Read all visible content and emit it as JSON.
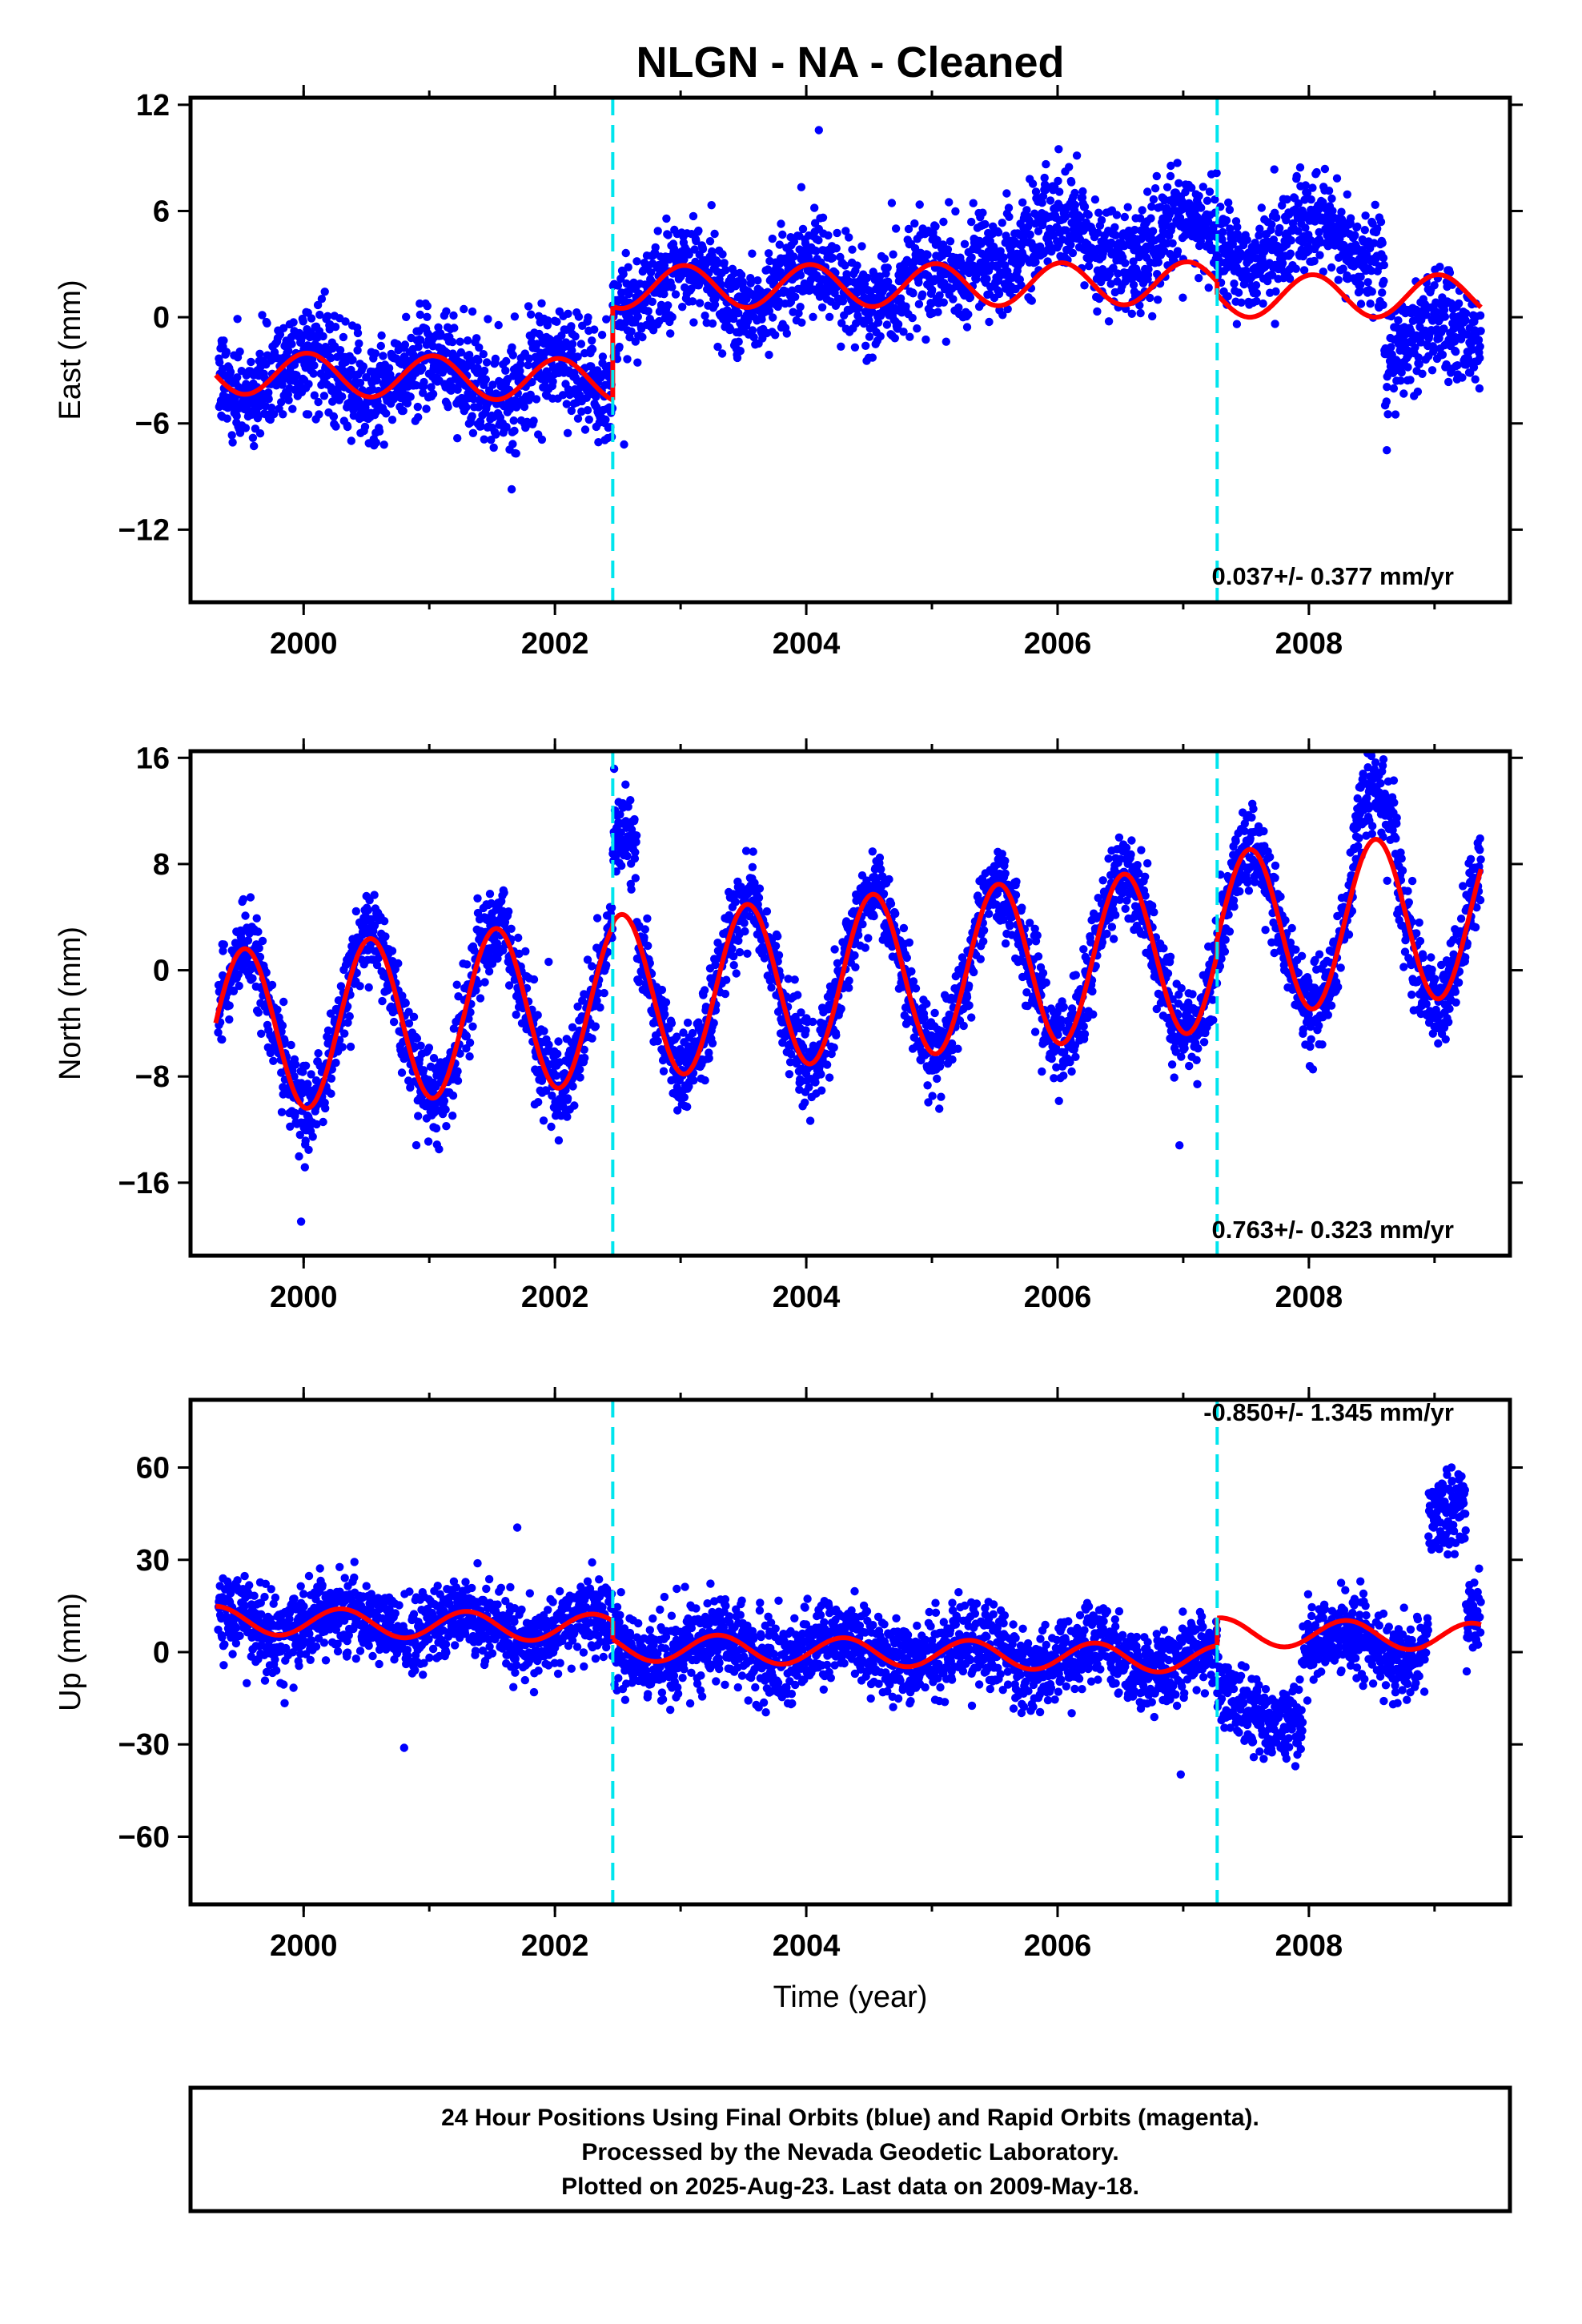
{
  "chart_data": {
    "type": "scatter",
    "title": "NLGN  - NA - Cleaned",
    "xlabel": "Time (year)",
    "xlim": [
      1999.1,
      2009.6
    ],
    "xticks": [
      2000,
      2002,
      2004,
      2006,
      2008
    ],
    "xtick_labels": [
      "2000",
      "2002",
      "2004",
      "2006",
      "2008"
    ],
    "series_colors": {
      "final_orbits": "#0000ff",
      "model": "#ff0000",
      "equipment_change": "#00e5ee"
    },
    "vertical_markers": [
      2002.46,
      2007.27
    ],
    "panels": [
      {
        "id": "east",
        "ylabel": "East (mm)",
        "ylim": [
          -16.1,
          12.4
        ],
        "yticks": [
          -12,
          -6,
          0,
          6,
          12
        ],
        "ytick_labels": [
          "-12",
          "-6",
          "0",
          "6",
          "12"
        ],
        "rate_label": "0.037+/- 0.377 mm/yr",
        "segments": [
          {
            "t0": 1999.3,
            "t1": 2002.46,
            "offset": -3.9,
            "trend": -0.15,
            "amp": 1.2,
            "phase": 0.78
          },
          {
            "t0": 2002.46,
            "t1": 2007.27,
            "offset": 1.8,
            "trend": 0.05,
            "amp": 1.2,
            "phase": 0.78
          },
          {
            "t0": 2007.27,
            "t1": 2009.37,
            "offset": 1.2,
            "trend": 0.0,
            "amp": 1.2,
            "phase": 0.78
          }
        ],
        "residual_offsets": [
          {
            "t0": 2005.3,
            "t1": 2007.27,
            "add": 2.4
          },
          {
            "t0": 2007.27,
            "t1": 2008.6,
            "add": 3.0
          },
          {
            "t0": 2008.6,
            "t1": 2009.37,
            "add": -2.5
          }
        ],
        "scatter_sigma": 1.4,
        "spike_times": [
          2002.55,
          2004.1,
          2008.62
        ]
      },
      {
        "id": "north",
        "ylabel": "North (mm)",
        "ylim": [
          -21.5,
          16.5
        ],
        "yticks": [
          -16,
          -8,
          0,
          8,
          16
        ],
        "ytick_labels": [
          "-16",
          "-8",
          "0",
          "8",
          "16"
        ],
        "rate_label": "0.763+/- 0.323 mm/yr",
        "segments": [
          {
            "t0": 1999.3,
            "t1": 2002.46,
            "offset": -0.8,
            "trend": 0.76,
            "amp": 6.2,
            "phase": 0.28
          },
          {
            "t0": 2002.46,
            "t1": 2007.27,
            "offset": -0.5,
            "trend": 0.76,
            "amp": 6.2,
            "phase": 0.28
          },
          {
            "t0": 2007.27,
            "t1": 2009.37,
            "offset": 0.6,
            "trend": 0.76,
            "amp": 6.2,
            "phase": 0.28
          }
        ],
        "residual_offsets": [
          {
            "t0": 2002.46,
            "t1": 2002.65,
            "add": 6.0
          },
          {
            "t0": 2008.35,
            "t1": 2008.7,
            "add": 3.5
          }
        ],
        "scatter_sigma": 1.6,
        "spike_times": [
          1999.98,
          2001.95,
          2006.97
        ]
      },
      {
        "id": "up",
        "ylabel": "Up (mm)",
        "ylim": [
          -82,
          82
        ],
        "yticks": [
          -60,
          -30,
          0,
          30,
          60
        ],
        "ytick_labels": [
          "-60",
          "-30",
          "0",
          "30",
          "60"
        ],
        "rate_label": "-0.850+/- 1.345 mm/yr",
        "segments": [
          {
            "t0": 1999.3,
            "t1": 2002.46,
            "offset": 6.0,
            "trend": -0.85,
            "amp": 4.5,
            "phase": 0.05
          },
          {
            "t0": 2002.46,
            "t1": 2007.27,
            "offset": 0.0,
            "trend": -0.85,
            "amp": 4.5,
            "phase": 0.05
          },
          {
            "t0": 2007.27,
            "t1": 2009.37,
            "offset": 9.0,
            "trend": -0.85,
            "amp": 4.5,
            "phase": 0.05
          }
        ],
        "residual_offsets": [
          {
            "t0": 2007.27,
            "t1": 2007.95,
            "add": -25.0
          },
          {
            "t0": 2007.95,
            "t1": 2008.85,
            "add": -4.0
          },
          {
            "t0": 2008.95,
            "t1": 2009.25,
            "add": 40.0
          }
        ],
        "scatter_sigma": 6.5,
        "spike_times": [
          2000.8,
          2001.7,
          2006.98
        ]
      }
    ]
  },
  "caption": {
    "line1": "24 Hour Positions Using Final Orbits (blue) and Rapid Orbits (magenta).",
    "line2": "Processed by the Nevada Geodetic Laboratory.",
    "line3": "Plotted on 2025-Aug-23. Last data on 2009-May-18."
  }
}
